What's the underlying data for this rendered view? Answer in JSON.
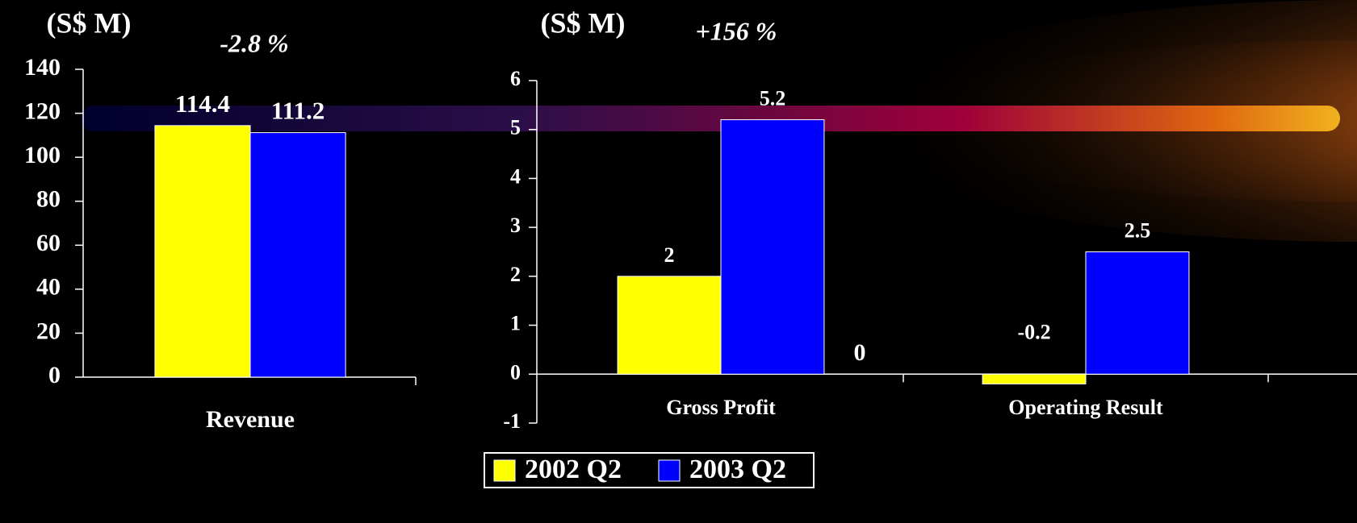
{
  "chart_data": [
    {
      "type": "bar",
      "ylabel": "(S$ M)",
      "annotations": [
        "-2.8 %"
      ],
      "categories": [
        "Revenue"
      ],
      "series": [
        {
          "color": "#ffff00",
          "values": [
            114.4
          ]
        },
        {
          "color": "#0000ff",
          "values": [
            111.2
          ]
        }
      ],
      "ylim": [
        0,
        140
      ],
      "yticks": [
        0,
        20,
        40,
        60,
        80,
        100,
        120,
        140
      ]
    },
    {
      "type": "bar",
      "ylabel": "(S$ M)",
      "annotations": [
        "+156 %",
        "0"
      ],
      "categories": [
        "Gross Profit",
        "Operating Result"
      ],
      "series": [
        {
          "name": "2002 Q2",
          "color": "#ffff00",
          "values": [
            2,
            -0.2
          ]
        },
        {
          "name": "2003 Q2",
          "color": "#0000ff",
          "values": [
            5.2,
            2.5
          ]
        }
      ],
      "ylim": [
        -1,
        6
      ],
      "yticks": [
        -1,
        0,
        1,
        2,
        3,
        4,
        5,
        6
      ],
      "legend": "bottom"
    }
  ]
}
